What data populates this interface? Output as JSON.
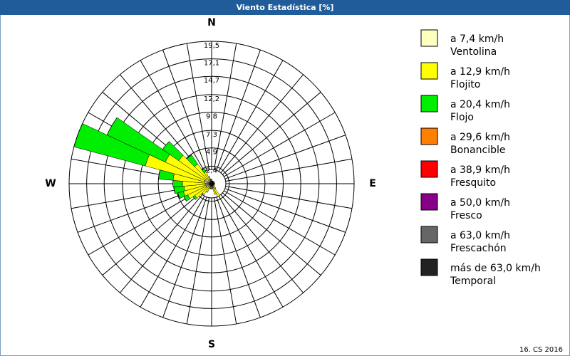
{
  "chart_data": {
    "type": "windrose",
    "title": "Viento Estadística [%]",
    "footer": "16. CS 2016",
    "compass_labels": [
      "N",
      "E",
      "S",
      "W"
    ],
    "directions": [
      0,
      10,
      20,
      30,
      40,
      50,
      60,
      70,
      80,
      90,
      100,
      110,
      120,
      130,
      140,
      150,
      160,
      170,
      180,
      190,
      200,
      210,
      220,
      230,
      240,
      250,
      260,
      270,
      280,
      290,
      300,
      310,
      320,
      330,
      340,
      350
    ],
    "rlim": [
      0,
      19.5
    ],
    "rticks": [
      {
        "value": 2.4,
        "label": "2,4"
      },
      {
        "value": 4.9,
        "label": "4,9"
      },
      {
        "value": 7.3,
        "label": "7,3"
      },
      {
        "value": 9.8,
        "label": "9,8"
      },
      {
        "value": 12.2,
        "label": "12,2"
      },
      {
        "value": 14.7,
        "label": "14,7"
      },
      {
        "value": 17.1,
        "label": "17,1"
      },
      {
        "value": 19.5,
        "label": "19,5"
      }
    ],
    "series": [
      {
        "name": "a 7,4 km/h",
        "description": "Ventolina",
        "color": "#ffffc0",
        "values": [
          0.4,
          0.3,
          0.3,
          0.3,
          0.3,
          0.3,
          0.3,
          0.3,
          0.3,
          0.3,
          0.3,
          0.3,
          0.3,
          0.3,
          0.4,
          0.5,
          0.5,
          0.4,
          0.4,
          0.4,
          0.4,
          0.5,
          0.6,
          0.8,
          0.8,
          0.8,
          0.8,
          0.8,
          1.0,
          1.0,
          1.0,
          1.0,
          0.8,
          0.6,
          0.5,
          0.4
        ]
      },
      {
        "name": "a 12,9 km/h",
        "description": "Flojito",
        "color": "#ffff00",
        "values": [
          0.2,
          0.1,
          0.1,
          0.1,
          0.1,
          0.1,
          0.1,
          0.1,
          0.1,
          0.1,
          0.1,
          0.1,
          0.1,
          0.1,
          0.4,
          1.5,
          1.0,
          0.3,
          0.3,
          0.3,
          0.3,
          0.8,
          1.2,
          2.0,
          2.8,
          3.2,
          3.0,
          3.2,
          4.3,
          8.4,
          6.0,
          4.5,
          2.5,
          1.2,
          0.5,
          0.2
        ]
      },
      {
        "name": "a 20,4 km/h",
        "description": "Flojo",
        "color": "#00ee00",
        "values": [
          0,
          0,
          0,
          0,
          0,
          0,
          0,
          0,
          0,
          0,
          0,
          0,
          0,
          0,
          0,
          0,
          0,
          0,
          0,
          0,
          0,
          0,
          0,
          0.3,
          0.6,
          0.8,
          1.4,
          1.3,
          2.0,
          10.1,
          8.8,
          2.7,
          1.5,
          0.5,
          0,
          0
        ]
      },
      {
        "name": "a 29,6 km/h",
        "description": "Bonancible",
        "color": "#ff8000",
        "values": [
          0,
          0,
          0,
          0,
          0,
          0,
          0,
          0,
          0,
          0,
          0,
          0,
          0,
          0,
          0,
          0,
          0,
          0,
          0,
          0,
          0,
          0,
          0,
          0,
          0,
          0,
          0,
          0,
          0,
          0,
          0,
          0,
          0,
          0,
          0,
          0
        ]
      },
      {
        "name": "a 38,9 km/h",
        "description": "Fresquito",
        "color": "#ff0000",
        "values": [
          0,
          0,
          0,
          0,
          0,
          0,
          0,
          0,
          0,
          0,
          0,
          0,
          0,
          0,
          0,
          0,
          0,
          0,
          0,
          0,
          0,
          0,
          0,
          0,
          0,
          0,
          0,
          0,
          0,
          0,
          0,
          0,
          0,
          0,
          0,
          0
        ]
      },
      {
        "name": "a 50,0 km/h",
        "description": "Fresco",
        "color": "#880088",
        "values": [
          0,
          0,
          0,
          0,
          0,
          0,
          0,
          0,
          0,
          0,
          0,
          0,
          0,
          0,
          0,
          0,
          0,
          0,
          0,
          0,
          0,
          0,
          0,
          0,
          0,
          0,
          0,
          0,
          0,
          0,
          0,
          0,
          0,
          0,
          0,
          0
        ]
      },
      {
        "name": "a 63,0 km/h",
        "description": "Frescachón",
        "color": "#666666",
        "values": [
          0,
          0,
          0,
          0,
          0,
          0,
          0,
          0,
          0,
          0,
          0,
          0,
          0,
          0,
          0,
          0,
          0,
          0,
          0,
          0,
          0,
          0,
          0,
          0,
          0,
          0,
          0,
          0,
          0,
          0,
          0,
          0,
          0,
          0,
          0,
          0
        ]
      },
      {
        "name": "más de 63,0 km/h",
        "description": "Temporal",
        "color": "#222222",
        "values": [
          0,
          0,
          0,
          0,
          0,
          0,
          0,
          0,
          0,
          0,
          0,
          0,
          0,
          0,
          0,
          0,
          0,
          0,
          0,
          0,
          0,
          0,
          0,
          0,
          0,
          0,
          0,
          0,
          0,
          0,
          0,
          0,
          0,
          0,
          0,
          0
        ]
      }
    ]
  }
}
